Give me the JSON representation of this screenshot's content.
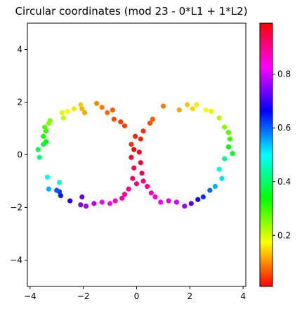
{
  "chart_data": {
    "type": "scatter",
    "title": "Circular coordinates (mod 23 - 0*L1 + 1*L2)",
    "xlabel": "",
    "ylabel": "",
    "xlim": [
      -4.1,
      4.1
    ],
    "ylim": [
      -5,
      5
    ],
    "x_ticks": [
      -4,
      -2,
      0,
      2,
      4
    ],
    "y_ticks": [
      -4,
      -2,
      0,
      2,
      4
    ],
    "x_tick_labels": [
      "−4",
      "−2",
      "0",
      "2",
      "4"
    ],
    "y_tick_labels": [
      "−4",
      "−2",
      "0",
      "2",
      "4"
    ],
    "grid": false,
    "colormap": "hsv",
    "colorbar": {
      "range": [
        0.01,
        0.99
      ],
      "ticks": [
        0.2,
        0.4,
        0.6,
        0.8
      ],
      "tick_labels": [
        "0.2",
        "0.4",
        "0.6",
        "0.8"
      ]
    },
    "points": [
      {
        "x": -0.05,
        "y": 0.7,
        "c": 0.02
      },
      {
        "x": -0.2,
        "y": 0.4,
        "c": 0.03
      },
      {
        "x": 0.15,
        "y": 0.6,
        "c": 0.02
      },
      {
        "x": -0.1,
        "y": 0.2,
        "c": 0.99
      },
      {
        "x": 0.1,
        "y": 0.1,
        "c": 0.98
      },
      {
        "x": -0.2,
        "y": -0.1,
        "c": 0.97
      },
      {
        "x": 0.15,
        "y": -0.3,
        "c": 0.96
      },
      {
        "x": -0.1,
        "y": -0.5,
        "c": 0.95
      },
      {
        "x": 0.2,
        "y": -0.7,
        "c": 0.94
      },
      {
        "x": -0.15,
        "y": -0.9,
        "c": 0.93
      },
      {
        "x": 0.0,
        "y": -1.1,
        "c": 0.92
      },
      {
        "x": -0.3,
        "y": -1.3,
        "c": 0.91
      },
      {
        "x": -0.45,
        "y": -1.5,
        "c": 0.9
      },
      {
        "x": -0.55,
        "y": -1.65,
        "c": 0.89
      },
      {
        "x": -0.8,
        "y": -1.75,
        "c": 0.86
      },
      {
        "x": -1.0,
        "y": -1.85,
        "c": 0.84
      },
      {
        "x": -1.3,
        "y": -1.8,
        "c": 0.82
      },
      {
        "x": -1.6,
        "y": -1.85,
        "c": 0.79
      },
      {
        "x": -1.9,
        "y": -1.95,
        "c": 0.77
      },
      {
        "x": -2.1,
        "y": -1.9,
        "c": 0.75
      },
      {
        "x": -2.05,
        "y": -1.6,
        "c": 0.73
      },
      {
        "x": -2.5,
        "y": -1.75,
        "c": 0.69
      },
      {
        "x": -2.85,
        "y": -1.55,
        "c": 0.65
      },
      {
        "x": -2.9,
        "y": -1.4,
        "c": 0.63
      },
      {
        "x": -3.0,
        "y": -1.35,
        "c": 0.61
      },
      {
        "x": -3.3,
        "y": -1.3,
        "c": 0.55
      },
      {
        "x": -3.35,
        "y": -0.85,
        "c": 0.5
      },
      {
        "x": -2.9,
        "y": -1.05,
        "c": 0.47
      },
      {
        "x": -3.65,
        "y": -0.1,
        "c": 0.42
      },
      {
        "x": -3.7,
        "y": 0.2,
        "c": 0.38
      },
      {
        "x": -3.5,
        "y": 0.4,
        "c": 0.36
      },
      {
        "x": -3.4,
        "y": 0.5,
        "c": 0.34
      },
      {
        "x": -3.5,
        "y": 0.7,
        "c": 0.32
      },
      {
        "x": -3.4,
        "y": 0.9,
        "c": 0.3
      },
      {
        "x": -3.45,
        "y": 1.05,
        "c": 0.28
      },
      {
        "x": -3.25,
        "y": 1.3,
        "c": 0.25
      },
      {
        "x": -3.3,
        "y": 1.2,
        "c": 0.24
      },
      {
        "x": -2.75,
        "y": 1.4,
        "c": 0.21
      },
      {
        "x": -2.8,
        "y": 1.6,
        "c": 0.19
      },
      {
        "x": -2.6,
        "y": 1.65,
        "c": 0.17
      },
      {
        "x": -2.35,
        "y": 1.75,
        "c": 0.15
      },
      {
        "x": -2.1,
        "y": 1.9,
        "c": 0.13
      },
      {
        "x": -2.05,
        "y": 1.75,
        "c": 0.12
      },
      {
        "x": -1.95,
        "y": 1.6,
        "c": 0.11
      },
      {
        "x": -1.5,
        "y": 1.95,
        "c": 0.09
      },
      {
        "x": -1.3,
        "y": 1.8,
        "c": 0.08
      },
      {
        "x": -1.1,
        "y": 1.6,
        "c": 0.07
      },
      {
        "x": -0.9,
        "y": 1.7,
        "c": 0.06
      },
      {
        "x": -0.85,
        "y": 1.35,
        "c": 0.05
      },
      {
        "x": -0.6,
        "y": 1.25,
        "c": 0.04
      },
      {
        "x": -0.45,
        "y": 1.1,
        "c": 0.04
      },
      {
        "x": 0.25,
        "y": 0.9,
        "c": 0.03
      },
      {
        "x": 0.5,
        "y": 1.2,
        "c": 0.05
      },
      {
        "x": 0.6,
        "y": 1.35,
        "c": 0.06
      },
      {
        "x": 1.0,
        "y": 1.85,
        "c": 0.08
      },
      {
        "x": 1.6,
        "y": 1.7,
        "c": 0.11
      },
      {
        "x": 1.9,
        "y": 1.9,
        "c": 0.13
      },
      {
        "x": 2.1,
        "y": 1.75,
        "c": 0.14
      },
      {
        "x": 2.25,
        "y": 1.9,
        "c": 0.15
      },
      {
        "x": 2.6,
        "y": 1.7,
        "c": 0.17
      },
      {
        "x": 2.8,
        "y": 1.65,
        "c": 0.19
      },
      {
        "x": 3.1,
        "y": 1.4,
        "c": 0.22
      },
      {
        "x": 3.3,
        "y": 1.05,
        "c": 0.25
      },
      {
        "x": 3.45,
        "y": 0.85,
        "c": 0.28
      },
      {
        "x": 3.5,
        "y": 0.6,
        "c": 0.3
      },
      {
        "x": 3.45,
        "y": 0.3,
        "c": 0.33
      },
      {
        "x": 3.6,
        "y": 0.05,
        "c": 0.36
      },
      {
        "x": 3.3,
        "y": -0.15,
        "c": 0.42
      },
      {
        "x": 3.1,
        "y": -0.55,
        "c": 0.47
      },
      {
        "x": 3.2,
        "y": -0.9,
        "c": 0.52
      },
      {
        "x": 2.95,
        "y": -1.2,
        "c": 0.55
      },
      {
        "x": 2.75,
        "y": -1.35,
        "c": 0.6
      },
      {
        "x": 2.5,
        "y": -1.6,
        "c": 0.64
      },
      {
        "x": 2.3,
        "y": -1.7,
        "c": 0.68
      },
      {
        "x": 2.05,
        "y": -1.85,
        "c": 0.72
      },
      {
        "x": 1.8,
        "y": -1.95,
        "c": 0.77
      },
      {
        "x": 1.5,
        "y": -1.8,
        "c": 0.8
      },
      {
        "x": 1.2,
        "y": -1.75,
        "c": 0.82
      },
      {
        "x": 0.9,
        "y": -1.8,
        "c": 0.84
      },
      {
        "x": 0.7,
        "y": -1.6,
        "c": 0.87
      },
      {
        "x": 0.55,
        "y": -1.45,
        "c": 0.88
      },
      {
        "x": 0.4,
        "y": -1.2,
        "c": 0.9
      },
      {
        "x": 0.25,
        "y": -1.0,
        "c": 0.92
      }
    ]
  }
}
